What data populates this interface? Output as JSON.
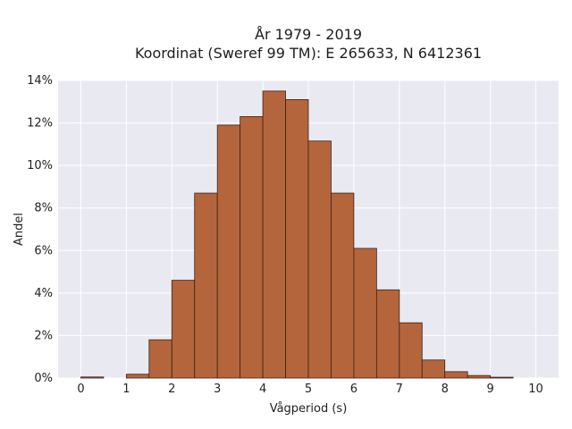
{
  "chart_data": {
    "type": "bar",
    "title_line1": "År 1979 - 2019",
    "title_line2": "Koordinat (Sweref 99 TM): E 265633, N 6412361",
    "xlabel": "Vågperiod (s)",
    "ylabel": "Andel",
    "xlim": [
      -0.5,
      10.5
    ],
    "ylim": [
      0,
      14
    ],
    "x_ticks": [
      "0",
      "1",
      "2",
      "3",
      "4",
      "5",
      "6",
      "7",
      "8",
      "9",
      "10"
    ],
    "y_ticks": [
      "0%",
      "2%",
      "4%",
      "6%",
      "8%",
      "10%",
      "12%",
      "14%"
    ],
    "bin_width": 0.5,
    "bins": [
      {
        "x0": 0.0,
        "value": 0.05
      },
      {
        "x0": 0.5,
        "value": 0.0
      },
      {
        "x0": 1.0,
        "value": 0.18
      },
      {
        "x0": 1.5,
        "value": 1.8
      },
      {
        "x0": 2.0,
        "value": 4.6
      },
      {
        "x0": 2.5,
        "value": 8.7
      },
      {
        "x0": 3.0,
        "value": 11.9
      },
      {
        "x0": 3.5,
        "value": 12.3
      },
      {
        "x0": 4.0,
        "value": 13.5
      },
      {
        "x0": 4.5,
        "value": 13.1
      },
      {
        "x0": 5.0,
        "value": 11.15
      },
      {
        "x0": 5.5,
        "value": 8.7
      },
      {
        "x0": 6.0,
        "value": 6.1
      },
      {
        "x0": 6.5,
        "value": 4.15
      },
      {
        "x0": 7.0,
        "value": 2.6
      },
      {
        "x0": 7.5,
        "value": 0.85
      },
      {
        "x0": 8.0,
        "value": 0.3
      },
      {
        "x0": 8.5,
        "value": 0.12
      },
      {
        "x0": 9.0,
        "value": 0.04
      }
    ],
    "grid": true,
    "colors": {
      "bar_fill": "#b5653b",
      "bar_edge": "#3a2218",
      "plot_bg": "#e9e9f2",
      "grid": "#ffffff"
    }
  }
}
